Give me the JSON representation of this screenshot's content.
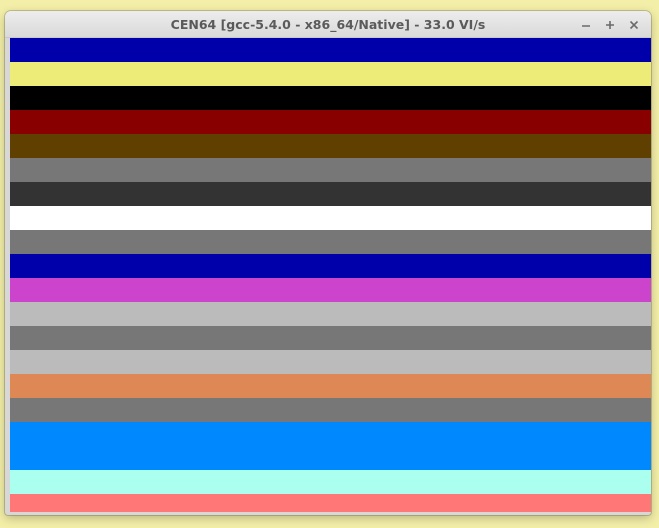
{
  "window": {
    "title": "CEN64 [gcc-5.4.0 - x86_64/Native] - 33.0 VI/s",
    "controls": {
      "minimize_icon": "minimize-icon",
      "maximize_icon": "maximize-icon",
      "close_icon": "close-icon"
    }
  },
  "colors": {
    "desktop_background": "#f3efa8",
    "stripes": [
      {
        "color": "#0000aa",
        "size": "normal"
      },
      {
        "color": "#eeec78",
        "size": "normal"
      },
      {
        "color": "#000000",
        "size": "normal"
      },
      {
        "color": "#880000",
        "size": "normal"
      },
      {
        "color": "#5f4000",
        "size": "normal"
      },
      {
        "color": "#777777",
        "size": "normal"
      },
      {
        "color": "#333333",
        "size": "normal"
      },
      {
        "color": "#ffffff",
        "size": "normal"
      },
      {
        "color": "#777777",
        "size": "normal"
      },
      {
        "color": "#0000aa",
        "size": "normal"
      },
      {
        "color": "#cc44cc",
        "size": "normal"
      },
      {
        "color": "#bbbbbb",
        "size": "normal"
      },
      {
        "color": "#777777",
        "size": "normal"
      },
      {
        "color": "#bbbbbb",
        "size": "normal"
      },
      {
        "color": "#dd8855",
        "size": "normal"
      },
      {
        "color": "#777777",
        "size": "normal"
      },
      {
        "color": "#0088ff",
        "size": "tall"
      },
      {
        "color": "#aaffee",
        "size": "normal"
      },
      {
        "color": "#ff7777",
        "size": "short"
      }
    ]
  }
}
